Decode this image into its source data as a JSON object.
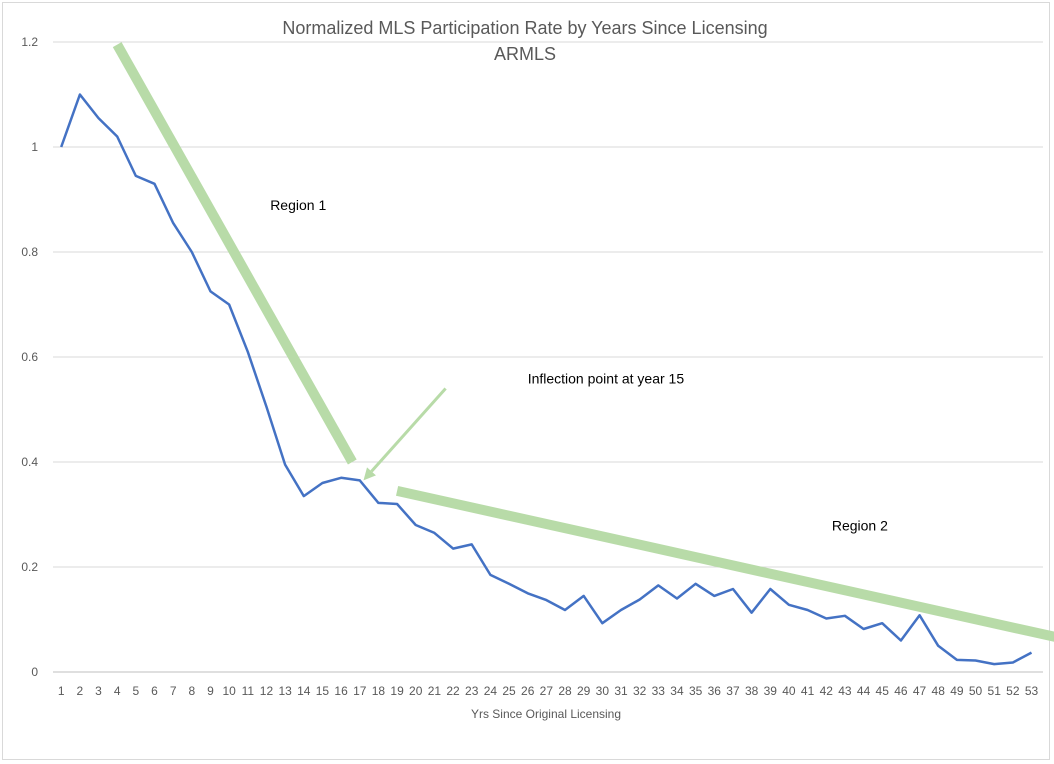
{
  "chart_data": {
    "type": "line",
    "title": "Normalized MLS Participation Rate by Years Since Licensing",
    "subtitle": "ARMLS",
    "xlabel": "Yrs Since Original Licensing",
    "ylabel": "",
    "ylim": [
      0,
      1.2
    ],
    "yticks": [
      "0",
      "0.2",
      "0.4",
      "0.6",
      "0.8",
      "1",
      "1.2"
    ],
    "grid": true,
    "x": [
      1,
      2,
      3,
      4,
      5,
      6,
      7,
      8,
      9,
      10,
      11,
      12,
      13,
      14,
      15,
      16,
      17,
      18,
      19,
      20,
      21,
      22,
      23,
      24,
      25,
      26,
      27,
      28,
      29,
      30,
      31,
      32,
      33,
      34,
      35,
      36,
      37,
      38,
      39,
      40,
      41,
      42,
      43,
      44,
      45,
      46,
      47,
      48,
      49,
      50,
      51,
      52,
      53
    ],
    "series": [
      {
        "values": [
          1.0,
          1.1,
          1.055,
          1.02,
          0.945,
          0.93,
          0.855,
          0.8,
          0.725,
          0.7,
          0.61,
          0.505,
          0.395,
          0.335,
          0.36,
          0.37,
          0.365,
          0.322,
          0.32,
          0.28,
          0.265,
          0.235,
          0.243,
          0.185,
          0.168,
          0.15,
          0.137,
          0.118,
          0.145,
          0.093,
          0.118,
          0.138,
          0.165,
          0.14,
          0.168,
          0.145,
          0.158,
          0.113,
          0.158,
          0.128,
          0.118,
          0.102,
          0.107,
          0.082,
          0.093,
          0.06,
          0.108,
          0.05,
          0.023,
          0.022,
          0.015,
          0.018,
          0.037
        ],
        "color": "#4472c4"
      }
    ],
    "trend_lines": [
      {
        "from": [
          4,
          1.195
        ],
        "to": [
          16.6,
          0.4
        ],
        "color": "#b8dba8"
      },
      {
        "from": [
          19,
          0.345
        ],
        "to": [
          54.5,
          0.065
        ],
        "color": "#b8dba8"
      }
    ],
    "arrow": {
      "from": [
        21.6,
        0.54
      ],
      "to": [
        17.2,
        0.365
      ],
      "color": "#b8dba8"
    },
    "annotations": [
      {
        "text": "Region 1",
        "at": [
          12.2,
          0.88
        ]
      },
      {
        "text": "Inflection point at year 15",
        "at": [
          26,
          0.55
        ]
      },
      {
        "text": "Region 2",
        "at": [
          42.3,
          0.27
        ]
      }
    ]
  }
}
